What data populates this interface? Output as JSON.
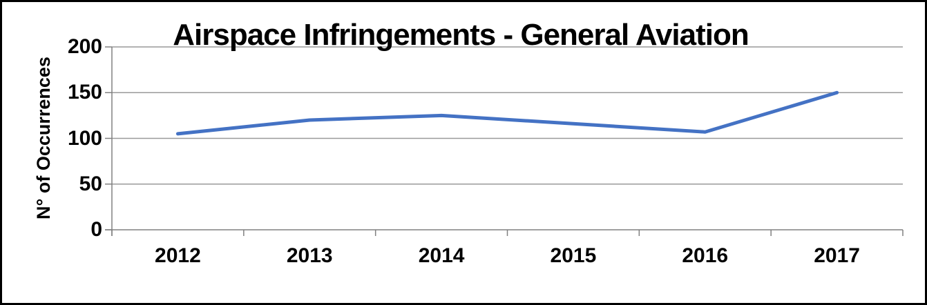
{
  "chart_data": {
    "type": "line",
    "title": "Airspace Infringements - General Aviation",
    "xlabel": "",
    "ylabel": "N° of Occurrences",
    "categories": [
      "2012",
      "2013",
      "2014",
      "2015",
      "2016",
      "2017"
    ],
    "series": [
      {
        "name": "Airspace Infringements - General Aviation",
        "values": [
          105,
          120,
          125,
          116,
          107,
          150
        ]
      }
    ],
    "ylim": [
      0,
      200
    ],
    "yticks": [
      0,
      50,
      100,
      150,
      200
    ],
    "grid": "horizontal",
    "legend": "none",
    "colors": {
      "line": "#4472C4",
      "gridline": "#999999",
      "axis": "#808080",
      "text": "#000000",
      "background": "#FFFFFF",
      "frame_border": "#000000"
    }
  }
}
